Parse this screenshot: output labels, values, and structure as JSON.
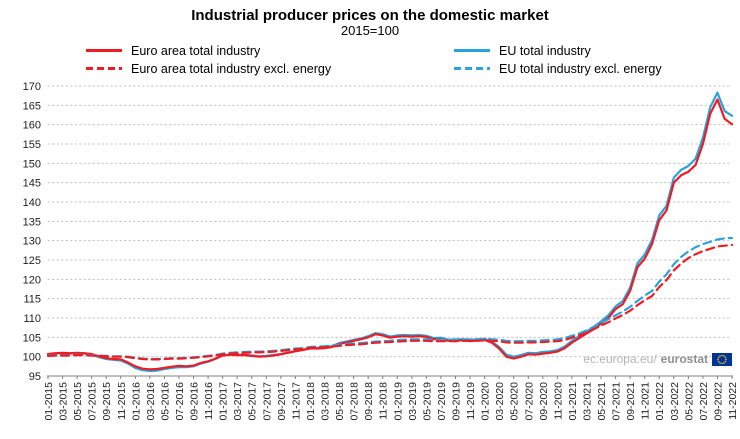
{
  "header": {
    "title": "Industrial producer prices on the domestic market",
    "subtitle": "2015=100"
  },
  "watermark": {
    "prefix": "ec.europa.eu/",
    "brand": "eurostat"
  },
  "chart_data": {
    "type": "line",
    "title": "Industrial producer prices on the domestic market",
    "subtitle": "2015=100",
    "grid": "horizontal-dotted",
    "legend_position": "top",
    "y_axis": {
      "min": 95,
      "max": 170,
      "step": 5,
      "ticks": [
        95,
        100,
        105,
        110,
        115,
        120,
        125,
        130,
        135,
        140,
        145,
        150,
        155,
        160,
        165,
        170
      ]
    },
    "x_months_total": 95,
    "x_tick_labels": [
      "01-2015",
      "03-2015",
      "05-2015",
      "07-2015",
      "09-2015",
      "11-2015",
      "01-2016",
      "03-2016",
      "05-2016",
      "07-2016",
      "09-2016",
      "11-2016",
      "01-2017",
      "03-2017",
      "05-2017",
      "07-2017",
      "09-2017",
      "11-2017",
      "01-2018",
      "03-2018",
      "05-2018",
      "07-2018",
      "09-2018",
      "11-2018",
      "01-2019",
      "03-2019",
      "05-2019",
      "07-2019",
      "09-2019",
      "11-2019",
      "01-2020",
      "03-2020",
      "05-2020",
      "07-2020",
      "09-2020",
      "11-2020",
      "01-2021",
      "03-2021",
      "05-2021",
      "07-2021",
      "09-2021",
      "11-2021",
      "01-2022",
      "03-2022",
      "05-2022",
      "07-2022",
      "09-2022",
      "11-2022"
    ],
    "series": [
      {
        "name": "Euro area total industry",
        "color": "#ed1c24",
        "dash": "solid",
        "values": [
          100.7,
          100.9,
          101.0,
          100.9,
          101.0,
          100.9,
          100.7,
          100.1,
          99.6,
          99.4,
          99.3,
          98.5,
          97.5,
          96.9,
          96.7,
          96.8,
          97.1,
          97.4,
          97.6,
          97.5,
          97.7,
          98.4,
          98.8,
          99.5,
          100.3,
          100.5,
          100.4,
          100.4,
          100.2,
          100.0,
          100.1,
          100.3,
          100.6,
          101.0,
          101.4,
          101.7,
          102.1,
          102.1,
          102.2,
          102.5,
          103.3,
          103.7,
          104.1,
          104.5,
          105.0,
          105.8,
          105.5,
          104.9,
          105.2,
          105.3,
          105.2,
          105.3,
          105.1,
          104.5,
          104.6,
          104.1,
          104.2,
          104.2,
          104.0,
          104.2,
          104.3,
          103.6,
          102.1,
          100.0,
          99.5,
          100.0,
          100.6,
          100.5,
          100.8,
          101.0,
          101.3,
          102.2,
          103.6,
          104.8,
          106.0,
          107.1,
          108.5,
          110.0,
          112.3,
          113.6,
          117.0,
          123.1,
          125.3,
          129.1,
          135.3,
          137.8,
          145.0,
          146.9,
          147.8,
          149.6,
          155.0,
          162.8,
          166.5,
          161.5,
          160.1
        ]
      },
      {
        "name": "EU total industry",
        "color": "#2aa2db",
        "dash": "solid",
        "values": [
          100.6,
          100.8,
          100.9,
          100.8,
          100.9,
          100.8,
          100.5,
          99.9,
          99.4,
          99.2,
          99.0,
          98.2,
          97.1,
          96.5,
          96.3,
          96.4,
          96.8,
          97.1,
          97.3,
          97.3,
          97.5,
          98.2,
          98.7,
          99.4,
          100.3,
          100.5,
          100.5,
          100.5,
          100.3,
          100.1,
          100.2,
          100.4,
          100.7,
          101.1,
          101.5,
          101.8,
          102.2,
          102.3,
          102.4,
          102.7,
          103.5,
          103.9,
          104.3,
          104.7,
          105.3,
          106.1,
          105.8,
          105.2,
          105.5,
          105.6,
          105.5,
          105.6,
          105.4,
          104.8,
          104.9,
          104.4,
          104.5,
          104.5,
          104.3,
          104.5,
          104.6,
          103.9,
          102.5,
          100.5,
          100.0,
          100.4,
          101.0,
          100.9,
          101.2,
          101.4,
          101.7,
          102.6,
          104.1,
          105.3,
          106.5,
          107.7,
          109.1,
          110.7,
          113.0,
          114.4,
          117.9,
          124.1,
          126.4,
          130.2,
          136.5,
          139.0,
          146.3,
          148.3,
          149.3,
          151.2,
          156.6,
          164.5,
          168.3,
          163.5,
          162.3
        ]
      },
      {
        "name": "Euro area total industry excl. energy",
        "color": "#ed1c24",
        "dash": "dashed",
        "values": [
          100.2,
          100.3,
          100.3,
          100.3,
          100.4,
          100.4,
          100.3,
          100.2,
          100.1,
          100.0,
          100.0,
          99.9,
          99.6,
          99.4,
          99.3,
          99.3,
          99.4,
          99.5,
          99.5,
          99.6,
          99.7,
          99.9,
          100.1,
          100.3,
          100.6,
          100.8,
          100.9,
          101.0,
          101.1,
          101.1,
          101.2,
          101.3,
          101.5,
          101.7,
          101.9,
          102.0,
          102.3,
          102.4,
          102.4,
          102.6,
          102.8,
          103.0,
          103.1,
          103.2,
          103.4,
          103.6,
          103.7,
          103.8,
          103.9,
          104.0,
          104.1,
          104.1,
          104.1,
          104.0,
          104.0,
          104.0,
          104.0,
          104.1,
          104.1,
          104.1,
          104.2,
          104.1,
          104.0,
          103.7,
          103.6,
          103.6,
          103.7,
          103.7,
          103.8,
          103.9,
          104.0,
          104.3,
          104.9,
          105.5,
          106.2,
          107.1,
          108.0,
          108.9,
          109.9,
          110.8,
          111.9,
          113.3,
          114.6,
          115.7,
          118.0,
          119.8,
          122.3,
          124.1,
          125.5,
          126.5,
          127.3,
          127.9,
          128.5,
          128.7,
          128.9
        ]
      },
      {
        "name": "EU total industry excl. energy",
        "color": "#2aa2db",
        "dash": "dashed",
        "values": [
          100.3,
          100.4,
          100.4,
          100.4,
          100.5,
          100.5,
          100.4,
          100.3,
          100.2,
          100.1,
          100.1,
          100.0,
          99.7,
          99.5,
          99.4,
          99.4,
          99.5,
          99.6,
          99.6,
          99.7,
          99.8,
          100.0,
          100.2,
          100.4,
          100.8,
          101.0,
          101.1,
          101.2,
          101.3,
          101.3,
          101.4,
          101.5,
          101.7,
          101.9,
          102.1,
          102.2,
          102.5,
          102.6,
          102.7,
          102.9,
          103.1,
          103.3,
          103.4,
          103.5,
          103.7,
          103.9,
          104.0,
          104.1,
          104.3,
          104.4,
          104.5,
          104.5,
          104.5,
          104.4,
          104.4,
          104.4,
          104.4,
          104.5,
          104.5,
          104.5,
          104.6,
          104.5,
          104.4,
          104.1,
          104.0,
          104.0,
          104.1,
          104.1,
          104.2,
          104.3,
          104.5,
          104.8,
          105.4,
          106.0,
          106.8,
          107.7,
          108.7,
          109.7,
          110.7,
          111.7,
          112.9,
          114.4,
          115.8,
          117.0,
          119.4,
          121.3,
          123.9,
          125.8,
          127.2,
          128.3,
          129.1,
          129.7,
          130.3,
          130.6,
          130.7
        ]
      }
    ]
  }
}
